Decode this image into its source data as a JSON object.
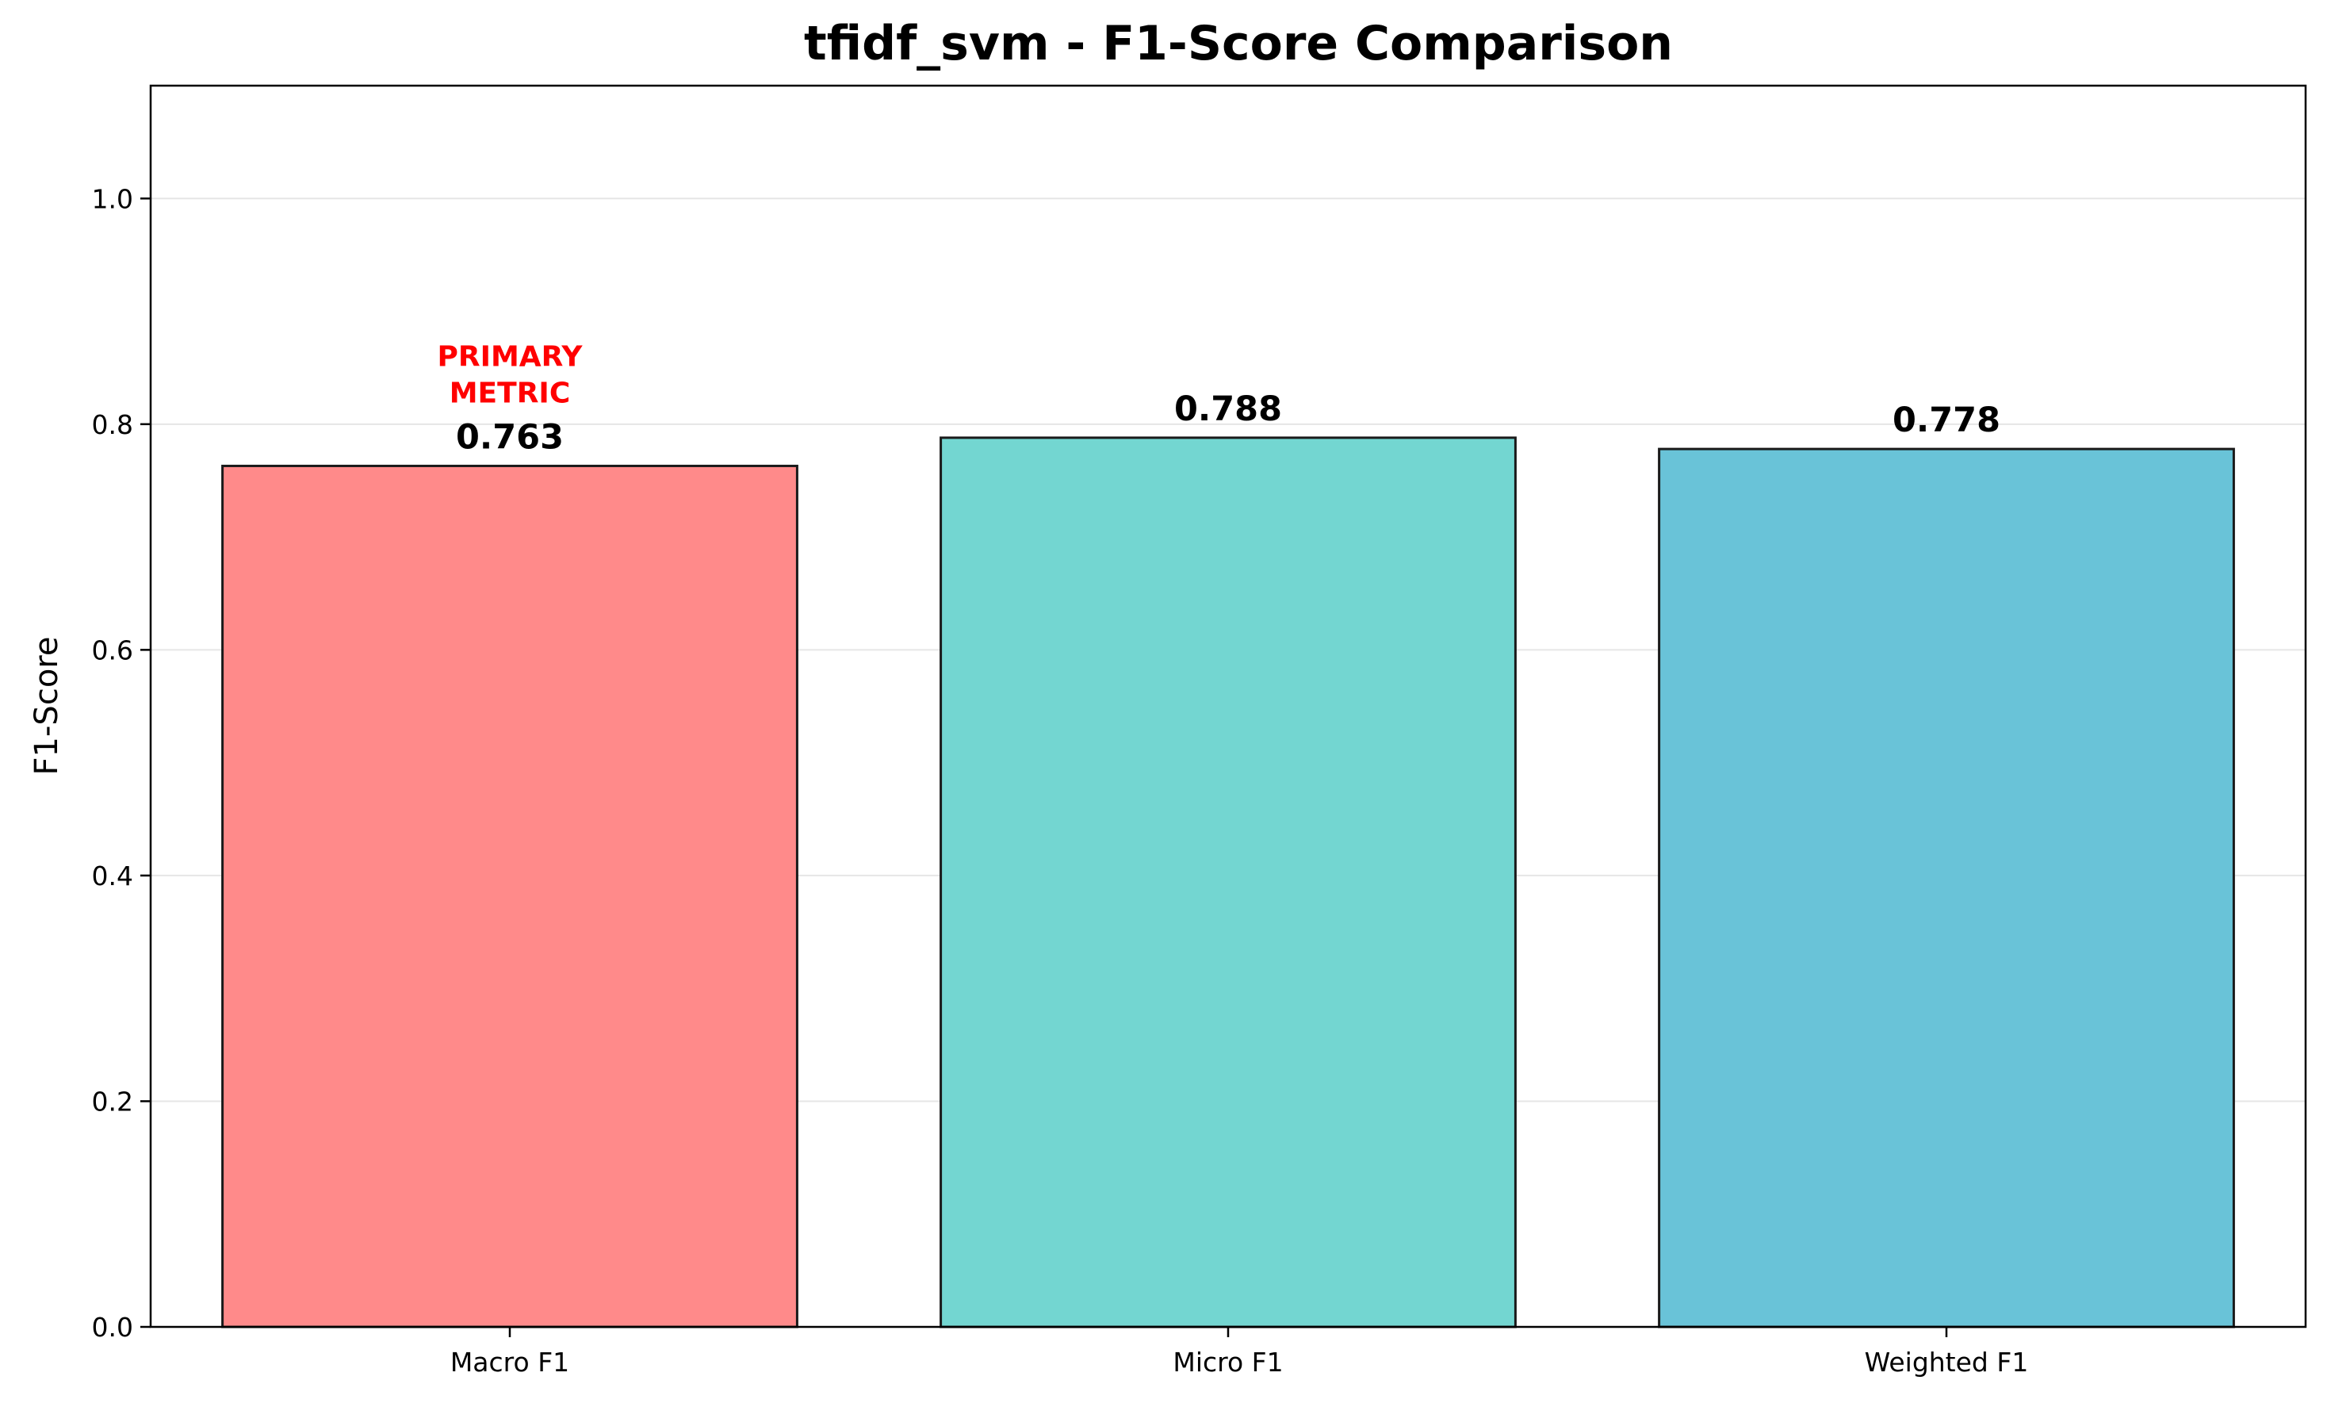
{
  "chart_data": {
    "type": "bar",
    "title": "tfidf_svm - F1-Score Comparison",
    "xlabel": "",
    "ylabel": "F1-Score",
    "ylim": [
      0,
      1.1
    ],
    "yticks": [
      0.0,
      0.2,
      0.4,
      0.6,
      0.8,
      1.0
    ],
    "ytick_labels": [
      "0.0",
      "0.2",
      "0.4",
      "0.6",
      "0.8",
      "1.0"
    ],
    "grid": "horizontal",
    "categories": [
      "Macro F1",
      "Micro F1",
      "Weighted F1"
    ],
    "values": [
      0.763,
      0.788,
      0.778
    ],
    "value_labels": [
      "0.763",
      "0.788",
      "0.778"
    ],
    "colors": [
      "#ff8a8a",
      "#73d6d1",
      "#69c3d8"
    ],
    "edge_color": "#1a1a1a",
    "annotation": {
      "category": "Macro F1",
      "lines": [
        "PRIMARY",
        "METRIC"
      ],
      "color": "#ff0000"
    }
  }
}
